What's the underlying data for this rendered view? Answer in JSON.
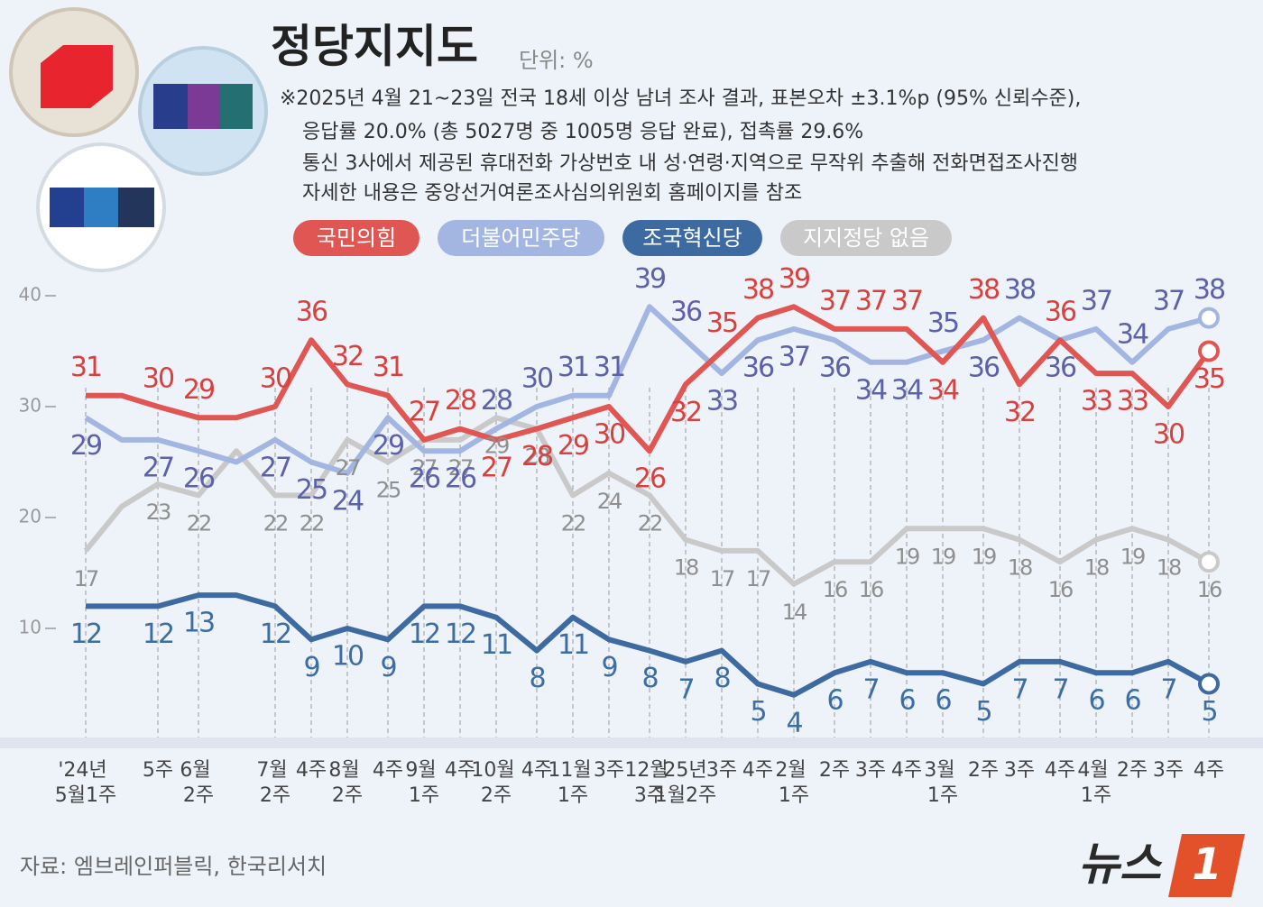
{
  "chart_data": {
    "type": "line",
    "title": "정당지지도",
    "unit": "단위: %",
    "notes": [
      "※2025년 4월 21~23일 전국 18세 이상 남녀 조사 결과, 표본오차 ±3.1%p (95% 신뢰수준),",
      "응답률 20.0% (총 5027명 중 1005명 응답 완료), 접촉률 29.6%",
      "통신 3사에서 제공된 휴대전화 가상번호 내 성·연령·지역으로 무작위 추출해 전화면접조사진행",
      "자세한 내용은 중앙선거여론조사심의위원회 홈페이지를 참조"
    ],
    "source": "자료: 엠브레인퍼블릭, 한국리서치",
    "logo": {
      "text": "뉴스",
      "mark": "1"
    },
    "categories": [
      "'24년 5월1주",
      null,
      "5주",
      "6월 2주",
      null,
      "7월 2주",
      "4주",
      "8월 2주",
      "4주",
      "9월 1주",
      "4주",
      "10월 2주",
      "4주",
      "11월 1주",
      "3주",
      "12월 3주",
      "'25년 1월2주",
      "3주",
      "4주",
      "2월 1주",
      "2주",
      "3주",
      "4주",
      "3월 1주",
      "2주",
      "3주",
      "4주",
      "4월 1주",
      "2주",
      "3주",
      "4주"
    ],
    "ylim": [
      0,
      40
    ],
    "yticks": [
      10,
      20,
      30,
      40
    ],
    "series": [
      {
        "name": "지지정당 없음",
        "color": "#c9c9c9",
        "label_color": "#8f8f8f",
        "values": [
          17,
          21,
          23,
          22,
          26,
          22,
          22,
          27,
          25,
          27,
          27,
          29,
          28,
          22,
          24,
          22,
          18,
          17,
          17,
          14,
          16,
          16,
          19,
          19,
          19,
          18,
          16,
          18,
          19,
          18,
          16
        ]
      },
      {
        "name": "조국혁신당",
        "color": "#3d6aa0",
        "label_color": "#3c6ea3",
        "values": [
          12,
          12,
          12,
          13,
          13,
          12,
          9,
          10,
          9,
          12,
          12,
          11,
          8,
          11,
          9,
          8,
          7,
          8,
          5,
          4,
          6,
          7,
          6,
          6,
          5,
          7,
          7,
          6,
          6,
          7,
          5
        ]
      },
      {
        "name": "더불어민주당",
        "color": "#a3b6e2",
        "label_color": "#5d62a8",
        "values": [
          29,
          27,
          27,
          26,
          25,
          27,
          25,
          24,
          29,
          26,
          26,
          28,
          30,
          31,
          31,
          39,
          36,
          33,
          36,
          37,
          36,
          34,
          34,
          35,
          36,
          38,
          36,
          37,
          34,
          37,
          38
        ]
      },
      {
        "name": "국민의힘",
        "color": "#e05652",
        "label_color": "#d9403e",
        "values": [
          31,
          31,
          30,
          29,
          29,
          30,
          36,
          32,
          31,
          27,
          28,
          27,
          28,
          29,
          30,
          26,
          32,
          35,
          38,
          39,
          37,
          37,
          37,
          34,
          38,
          32,
          36,
          33,
          33,
          30,
          35
        ]
      }
    ]
  }
}
